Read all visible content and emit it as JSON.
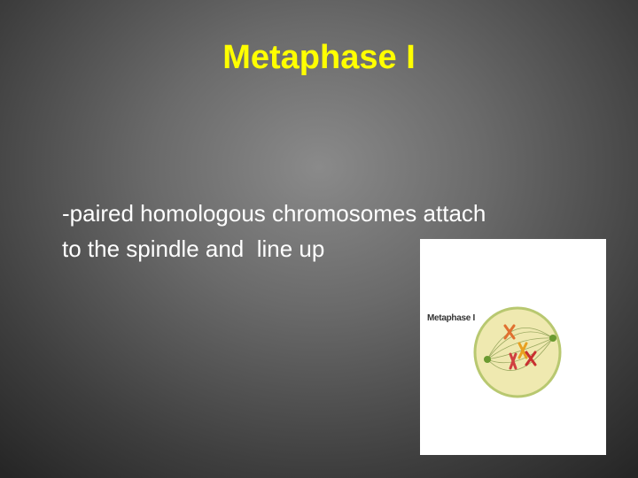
{
  "slide": {
    "title": "Metaphase I",
    "body_lines": [
      "-paired homologous chromosomes attach",
      "to the spindle and  line up"
    ],
    "figure": {
      "label": "Metaphase I"
    }
  }
}
